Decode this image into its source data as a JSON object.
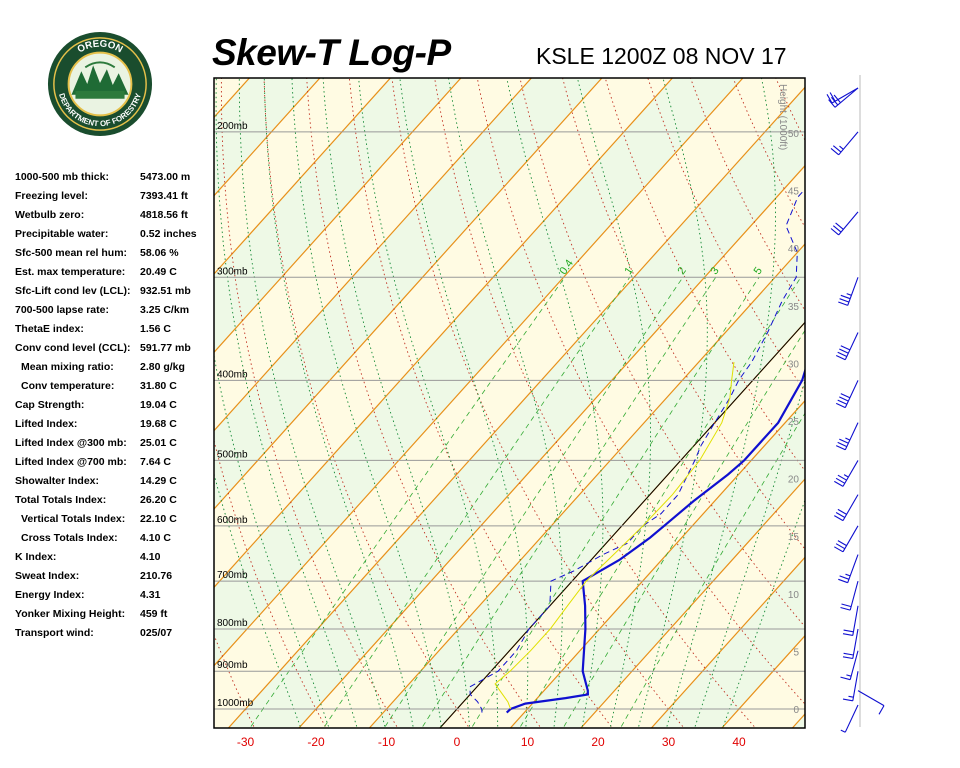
{
  "header": {
    "title": "Skew-T Log-P",
    "subtitle": "KSLE 1200Z 08 NOV 17"
  },
  "logo": {
    "top_text": "OREGON",
    "bottom_text": "DEPARTMENT OF FORESTRY"
  },
  "indices": [
    {
      "label": "1000-500 mb thick:",
      "value": "5473.00 m",
      "indent": false
    },
    {
      "label": "Freezing level:",
      "value": "7393.41 ft",
      "indent": false
    },
    {
      "label": "Wetbulb zero:",
      "value": "4818.56 ft",
      "indent": false
    },
    {
      "label": "Precipitable water:",
      "value": "0.52 inches",
      "indent": false
    },
    {
      "label": "Sfc-500 mean rel hum:",
      "value": "58.06 %",
      "indent": false
    },
    {
      "label": "Est. max temperature:",
      "value": "20.49 C",
      "indent": false
    },
    {
      "label": "Sfc-Lift cond lev (LCL):",
      "value": "932.51 mb",
      "indent": false
    },
    {
      "label": "700-500 lapse rate:",
      "value": "3.25 C/km",
      "indent": false
    },
    {
      "label": "ThetaE index:",
      "value": "1.56 C",
      "indent": false
    },
    {
      "label": "Conv cond level (CCL):",
      "value": "591.77 mb",
      "indent": false
    },
    {
      "label": "Mean mixing ratio:",
      "value": "2.80 g/kg",
      "indent": true
    },
    {
      "label": "Conv temperature:",
      "value": "31.80 C",
      "indent": true
    },
    {
      "label": "Cap Strength:",
      "value": "19.04 C",
      "indent": false
    },
    {
      "label": "Lifted Index:",
      "value": "19.68 C",
      "indent": false
    },
    {
      "label": "Lifted Index @300 mb:",
      "value": "25.01 C",
      "indent": false
    },
    {
      "label": "Lifted Index @700 mb:",
      "value": "7.64 C",
      "indent": false
    },
    {
      "label": "Showalter Index:",
      "value": "14.29 C",
      "indent": false
    },
    {
      "label": "Total Totals Index:",
      "value": "26.20 C",
      "indent": false
    },
    {
      "label": "Vertical Totals Index:",
      "value": "22.10 C",
      "indent": true
    },
    {
      "label": "Cross Totals Index:",
      "value": "4.10 C",
      "indent": true
    },
    {
      "label": "K Index:",
      "value": "4.10",
      "indent": false
    },
    {
      "label": "Sweat Index:",
      "value": "210.76",
      "indent": false
    },
    {
      "label": "Energy Index:",
      "value": "4.31",
      "indent": false
    },
    {
      "label": "Yonker Mixing Height:",
      "value": "459 ft",
      "indent": false
    },
    {
      "label": "Transport wind:",
      "value": "025/07",
      "indent": false
    }
  ],
  "chart_data": {
    "type": "line",
    "title": "Skew-T Log-P",
    "subtitle": "KSLE 1200Z 08 NOV 17",
    "xlabel": "",
    "ylabel": "",
    "x_ticks": [
      -30,
      -20,
      -10,
      0,
      10,
      20,
      30,
      40
    ],
    "pressure_levels": [
      {
        "p": 200,
        "label": "200mb"
      },
      {
        "p": 300,
        "label": "300mb"
      },
      {
        "p": 400,
        "label": "400mb"
      },
      {
        "p": 500,
        "label": "500mb"
      },
      {
        "p": 600,
        "label": "600mb"
      },
      {
        "p": 700,
        "label": "700mb"
      },
      {
        "p": 800,
        "label": "800mb"
      },
      {
        "p": 900,
        "label": "900mb"
      },
      {
        "p": 1000,
        "label": "1000mb"
      }
    ],
    "height_axis_title": "Height (1000ft)",
    "height_ticks": [
      0,
      5,
      10,
      15,
      20,
      25,
      30,
      35,
      40,
      45,
      50
    ],
    "mixing_ratio_labels": [
      "0.4",
      "1",
      "2",
      "3",
      "5"
    ],
    "series": [
      {
        "role": "temperature",
        "style": "solid",
        "color": "#1010d0",
        "points": [
          [
            1010,
            7.5
          ],
          [
            1000,
            7.6
          ],
          [
            985,
            9
          ],
          [
            970,
            14
          ],
          [
            960,
            16.7
          ],
          [
            950,
            16.2
          ],
          [
            900,
            13
          ],
          [
            800,
            8
          ],
          [
            750,
            5
          ],
          [
            700,
            1.5
          ],
          [
            660,
            4
          ],
          [
            620,
            5.5
          ],
          [
            600,
            6
          ],
          [
            560,
            7
          ],
          [
            520,
            8.5
          ],
          [
            500,
            9
          ],
          [
            450,
            9
          ],
          [
            400,
            7
          ],
          [
            350,
            3
          ],
          [
            300,
            -3
          ],
          [
            250,
            -10
          ],
          [
            200,
            -16
          ]
        ]
      },
      {
        "role": "dewpoint",
        "style": "dashed",
        "color": "#1010d0",
        "points": [
          [
            1010,
            4
          ],
          [
            1000,
            3.5
          ],
          [
            980,
            2
          ],
          [
            960,
            0
          ],
          [
            940,
            -1
          ],
          [
            900,
            1
          ],
          [
            850,
            1
          ],
          [
            800,
            0
          ],
          [
            750,
            0
          ],
          [
            700,
            -3
          ],
          [
            680,
            -1
          ],
          [
            650,
            1
          ],
          [
            630,
            3
          ],
          [
            600,
            3
          ],
          [
            580,
            4
          ],
          [
            550,
            4
          ],
          [
            500,
            2
          ],
          [
            480,
            1
          ],
          [
            450,
            0
          ],
          [
            420,
            -1
          ],
          [
            400,
            -2
          ],
          [
            380,
            -2.5
          ],
          [
            350,
            -4
          ],
          [
            320,
            -6
          ],
          [
            300,
            -7
          ],
          [
            280,
            -10
          ],
          [
            260,
            -15
          ],
          [
            240,
            -17
          ],
          [
            230,
            -17
          ],
          [
            220,
            -17
          ],
          [
            210,
            -16
          ],
          [
            200,
            -16
          ]
        ]
      },
      {
        "role": "parcel",
        "style": "solid",
        "color": "#e0e000",
        "points": [
          [
            1000,
            7.6
          ],
          [
            980,
            6.3
          ],
          [
            960,
            4.6
          ],
          [
            932.5,
            2.2
          ],
          [
            900,
            2.7
          ],
          [
            850,
            3
          ],
          [
            800,
            3
          ],
          [
            750,
            2.5
          ],
          [
            700,
            2
          ],
          [
            650,
            2.5
          ],
          [
            600,
            3
          ],
          [
            550,
            3.2
          ],
          [
            500,
            2.7
          ],
          [
            450,
            1
          ],
          [
            420,
            -1
          ],
          [
            400,
            -3
          ],
          [
            380,
            -5
          ]
        ]
      }
    ],
    "winds_left": [
      {
        "p": 1000,
        "dir": 25,
        "spd": 7
      },
      {
        "p": 950,
        "dir": 300,
        "spd": 10
      },
      {
        "p": 900,
        "dir": 10,
        "spd": 15
      },
      {
        "p": 850,
        "dir": 15,
        "spd": 15
      },
      {
        "p": 800,
        "dir": 10,
        "spd": 20
      },
      {
        "p": 750,
        "dir": 10,
        "spd": 20
      },
      {
        "p": 700,
        "dir": 15,
        "spd": 20
      },
      {
        "p": 650,
        "dir": 20,
        "spd": 25
      },
      {
        "p": 600,
        "dir": 30,
        "spd": 30
      },
      {
        "p": 550,
        "dir": 30,
        "spd": 30
      },
      {
        "p": 500,
        "dir": 30,
        "spd": 35
      },
      {
        "p": 450,
        "dir": 25,
        "spd": 35
      },
      {
        "p": 400,
        "dir": 25,
        "spd": 40
      },
      {
        "p": 350,
        "dir": 25,
        "spd": 40
      },
      {
        "p": 300,
        "dir": 20,
        "spd": 35
      },
      {
        "p": 250,
        "dir": 40,
        "spd": 30
      },
      {
        "p": 200,
        "dir": 40,
        "spd": 25
      },
      {
        "p": 150,
        "dir": 50,
        "spd": 30
      },
      {
        "p": 100,
        "dir": 60,
        "spd": 20
      }
    ],
    "grid": true
  }
}
